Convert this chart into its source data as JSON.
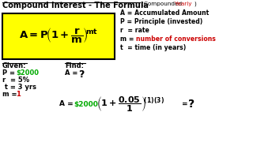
{
  "bg_color": "#ffffff",
  "box_fill": "#ffff00",
  "box_stroke": "#000000",
  "green": "#00aa00",
  "red": "#cc0000",
  "black": "#000000",
  "title1": "Compound Interest - The Formula",
  "title2": "(Compounded ",
  "title3": "Yearly",
  "title4": ")",
  "legend": [
    [
      "A = Accumulated Amount",
      "black"
    ],
    [
      "P = Principle (invested)",
      "black"
    ],
    [
      "r  = rate",
      "black"
    ],
    [
      "m = ",
      "black"
    ],
    [
      "t  = time (in years)",
      "black"
    ]
  ],
  "red_legend": "number of conversions",
  "given_label": "Given:",
  "find_label": "Find:",
  "given_lines": [
    "P = ",
    "$2000",
    "r  = 5%",
    " t = 3 yrs",
    "m = ",
    "1"
  ],
  "find_a": "A = ",
  "find_q": "?",
  "bottom_a": "A = ",
  "bottom_val": "$2000",
  "bottom_eq": "= ",
  "bottom_q": "?"
}
